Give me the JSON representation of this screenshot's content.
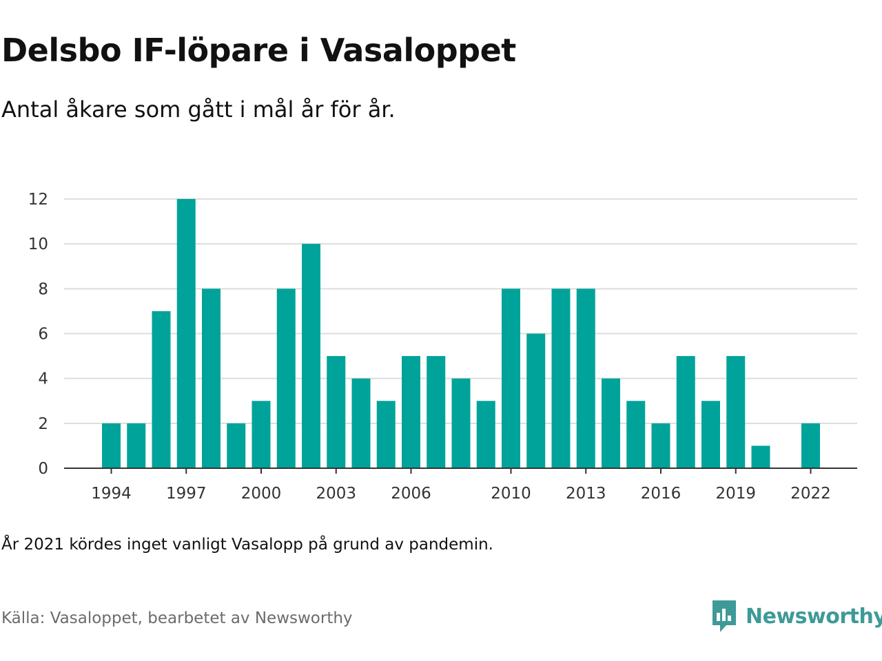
{
  "title": "Delsbo IF-löpare i Vasaloppet",
  "subtitle": "Antal åkare som gått i mål år för år.",
  "note": "År 2021 kördes inget vanligt Vasalopp på grund av pandemin.",
  "source": "Källa: Vasaloppet, bearbetet av Newsworthy",
  "logo": {
    "text": "Newsworthy",
    "icon": "newsworthy-logo-icon",
    "color": "#3e9a97"
  },
  "colors": {
    "bar": "#00a39a",
    "grid": "#dddddd",
    "axis": "#333333"
  },
  "chart_data": {
    "type": "bar",
    "x": [
      1994,
      1995,
      1996,
      1997,
      1998,
      1999,
      2000,
      2001,
      2002,
      2003,
      2004,
      2005,
      2006,
      2007,
      2008,
      2009,
      2010,
      2011,
      2012,
      2013,
      2014,
      2015,
      2016,
      2017,
      2018,
      2019,
      2020,
      2021,
      2022
    ],
    "values": [
      2,
      2,
      7,
      12,
      8,
      2,
      3,
      8,
      10,
      5,
      4,
      3,
      5,
      5,
      4,
      3,
      8,
      6,
      8,
      8,
      4,
      3,
      2,
      5,
      3,
      5,
      1,
      null,
      2
    ],
    "x_ticks": [
      "1994",
      "1997",
      "2000",
      "2003",
      "2006",
      "2010",
      "2013",
      "2016",
      "2019",
      "2022"
    ],
    "y_ticks": [
      0,
      2,
      4,
      6,
      8,
      10,
      12
    ],
    "ylim": [
      0,
      12
    ],
    "grid": true
  }
}
